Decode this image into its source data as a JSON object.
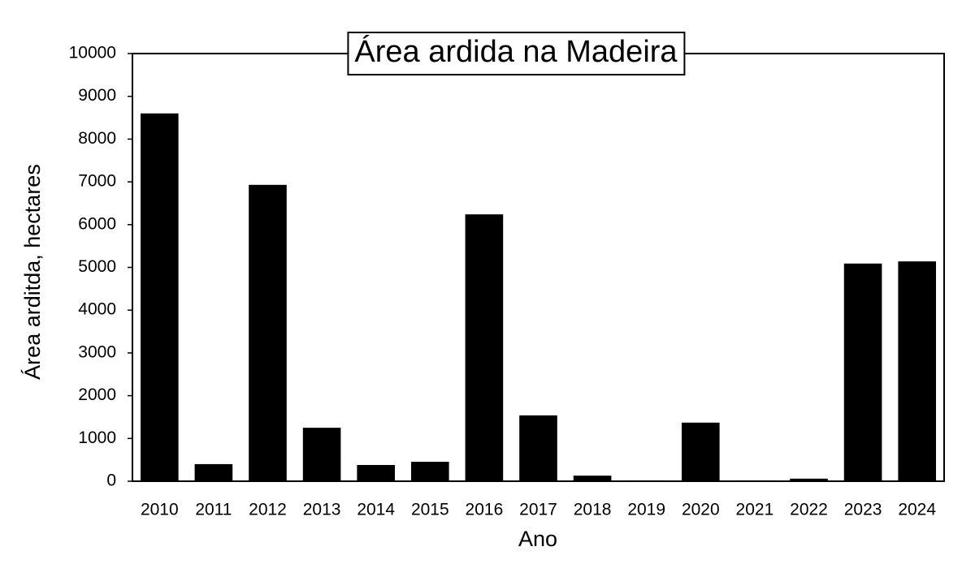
{
  "chart_data": {
    "type": "bar",
    "title": "Área ardida na Madeira",
    "x_label": "Ano",
    "y_label": "Área arditda, hectares",
    "categories": [
      "2010",
      "2011",
      "2012",
      "2013",
      "2014",
      "2015",
      "2016",
      "2017",
      "2018",
      "2019",
      "2020",
      "2021",
      "2022",
      "2023",
      "2024"
    ],
    "values": [
      8600,
      400,
      6930,
      1250,
      380,
      455,
      6240,
      1540,
      130,
      20,
      1370,
      20,
      60,
      5090,
      5140
    ],
    "color": "#000000",
    "ylim": [
      0,
      10000
    ],
    "yticks": [
      0,
      1000,
      2000,
      3000,
      4000,
      5000,
      6000,
      7000,
      8000,
      9000,
      10000
    ],
    "grid": false
  }
}
